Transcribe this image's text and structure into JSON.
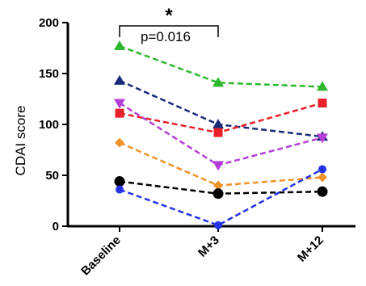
{
  "chart_data": {
    "type": "line",
    "title": "",
    "xlabel": "",
    "ylabel": "CDAI score",
    "categories": [
      "Baseline",
      "M+3",
      "M+12"
    ],
    "ylim": [
      0,
      200
    ],
    "yticks": [
      0,
      50,
      100,
      150,
      200
    ],
    "grid": false,
    "legend": "none",
    "series": [
      {
        "values": [
          177,
          141,
          137
        ],
        "color": "#2db82d",
        "marker": "triangle-up"
      },
      {
        "values": [
          143,
          100,
          88
        ],
        "color": "#1a2a7a",
        "marker": "triangle-up"
      },
      {
        "values": [
          111,
          92,
          121
        ],
        "color": "#e8202a",
        "marker": "square"
      },
      {
        "values": [
          121,
          60,
          87
        ],
        "color": "#b53fd6",
        "marker": "triangle-down"
      },
      {
        "values": [
          82,
          40,
          48
        ],
        "color": "#f0922a",
        "marker": "diamond"
      },
      {
        "values": [
          44,
          32,
          34
        ],
        "color": "#000000",
        "marker": "circle"
      },
      {
        "values": [
          36,
          1,
          56
        ],
        "color": "#2533e6",
        "marker": "circle-small"
      }
    ],
    "annotations": {
      "significance": "*",
      "pvalue": "p=0.016"
    }
  }
}
